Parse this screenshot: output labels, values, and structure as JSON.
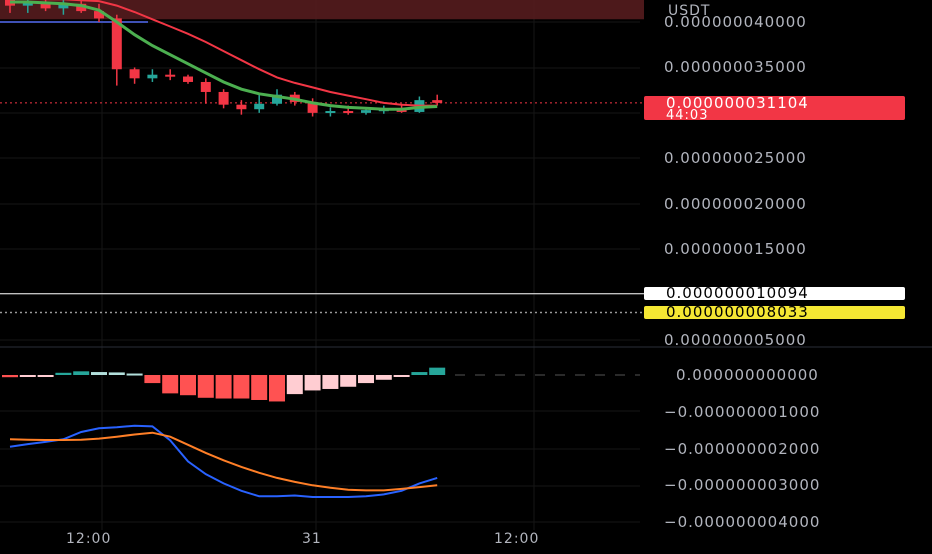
{
  "currency_label": "USDT",
  "price_axis": {
    "labels": [
      "0.000000040000",
      "0.000000035000",
      "0.000000025000",
      "0.000000020000",
      "0.000000015000",
      "0.000000005000"
    ],
    "values": [
      40,
      35,
      25,
      20,
      15,
      5
    ],
    "unit_scale": "1e-9"
  },
  "current_price_badge": {
    "value": "0.000000031104",
    "countdown": "44:03",
    "color": "#f23645"
  },
  "white_line_badge": {
    "value": "0.000000010094"
  },
  "yellow_line_badge": {
    "value": "0.000000008033"
  },
  "macd_axis": {
    "labels": [
      "0.000000000000",
      "−0.000000001000",
      "−0.000000002000",
      "−0.000000003000",
      "−0.000000004000"
    ],
    "values": [
      0,
      -1,
      -2,
      -3,
      -4
    ]
  },
  "time_axis": {
    "labels": [
      "12:00",
      "31",
      "12:00"
    ]
  },
  "colors": {
    "up": "#26a69a",
    "down": "#f23645",
    "ma_fast": "#4caf50",
    "ma_slow": "#f23645",
    "macd": "#2962ff",
    "signal": "#ff7f27",
    "resistance_zone": "#5b1d20",
    "blue_line": "#3f51b5"
  },
  "chart_data": {
    "type": "candlestick",
    "candles": [
      {
        "o": 42.5,
        "h": 43.0,
        "l": 41.0,
        "c": 41.8
      },
      {
        "o": 41.8,
        "h": 42.6,
        "l": 41.0,
        "c": 42.2
      },
      {
        "o": 42.2,
        "h": 42.8,
        "l": 41.2,
        "c": 41.5
      },
      {
        "o": 41.5,
        "h": 42.6,
        "l": 40.8,
        "c": 42.0
      },
      {
        "o": 42.0,
        "h": 42.5,
        "l": 41.0,
        "c": 41.2
      },
      {
        "o": 41.2,
        "h": 42.0,
        "l": 40.0,
        "c": 40.4
      },
      {
        "o": 40.4,
        "h": 40.8,
        "l": 33.0,
        "c": 34.8
      },
      {
        "o": 34.8,
        "h": 35.0,
        "l": 33.2,
        "c": 33.8
      },
      {
        "o": 33.8,
        "h": 34.8,
        "l": 33.4,
        "c": 34.2
      },
      {
        "o": 34.2,
        "h": 34.8,
        "l": 33.6,
        "c": 34.0
      },
      {
        "o": 34.0,
        "h": 34.2,
        "l": 33.2,
        "c": 33.4
      },
      {
        "o": 33.4,
        "h": 33.8,
        "l": 31.0,
        "c": 32.3
      },
      {
        "o": 32.3,
        "h": 32.6,
        "l": 30.5,
        "c": 30.9
      },
      {
        "o": 30.9,
        "h": 31.4,
        "l": 29.8,
        "c": 30.4
      },
      {
        "o": 30.4,
        "h": 32.0,
        "l": 30.0,
        "c": 31.0
      },
      {
        "o": 31.0,
        "h": 32.6,
        "l": 30.8,
        "c": 32.0
      },
      {
        "o": 32.0,
        "h": 32.3,
        "l": 30.8,
        "c": 31.2
      },
      {
        "o": 31.2,
        "h": 31.6,
        "l": 29.6,
        "c": 30.0
      },
      {
        "o": 30.0,
        "h": 30.6,
        "l": 29.6,
        "c": 30.2
      },
      {
        "o": 30.2,
        "h": 30.8,
        "l": 29.8,
        "c": 30.0
      },
      {
        "o": 30.0,
        "h": 30.6,
        "l": 29.8,
        "c": 30.3
      },
      {
        "o": 30.3,
        "h": 30.8,
        "l": 29.9,
        "c": 30.4
      },
      {
        "o": 30.4,
        "h": 31.0,
        "l": 30.0,
        "c": 30.1
      },
      {
        "o": 30.1,
        "h": 31.8,
        "l": 30.0,
        "c": 31.4
      },
      {
        "o": 31.4,
        "h": 32.0,
        "l": 30.8,
        "c": 31.1
      }
    ],
    "ma_fast": [
      42.2,
      42.2,
      42.1,
      42.0,
      41.8,
      41.3,
      40.0,
      38.6,
      37.4,
      36.4,
      35.4,
      34.4,
      33.4,
      32.6,
      32.1,
      31.8,
      31.5,
      31.1,
      30.8,
      30.6,
      30.5,
      30.4,
      30.4,
      30.6,
      30.7
    ],
    "ma_slow": [
      42.6,
      42.6,
      42.5,
      42.5,
      42.4,
      42.3,
      41.8,
      41.1,
      40.3,
      39.5,
      38.7,
      37.8,
      36.8,
      35.8,
      34.8,
      33.9,
      33.3,
      32.8,
      32.3,
      31.9,
      31.5,
      31.1,
      30.9,
      30.8,
      30.8
    ],
    "macd_hist": [
      -0.06,
      -0.04,
      -0.02,
      0.06,
      0.1,
      0.08,
      0.07,
      0.04,
      -0.22,
      -0.5,
      -0.55,
      -0.62,
      -0.64,
      -0.64,
      -0.68,
      -0.72,
      -0.52,
      -0.42,
      -0.38,
      -0.32,
      -0.22,
      -0.13,
      -0.04,
      0.08,
      0.2
    ],
    "macd_line": [
      -1.95,
      -1.88,
      -1.82,
      -1.75,
      -1.55,
      -1.45,
      -1.42,
      -1.38,
      -1.4,
      -1.78,
      -2.35,
      -2.7,
      -2.95,
      -3.15,
      -3.3,
      -3.3,
      -3.28,
      -3.32,
      -3.32,
      -3.32,
      -3.3,
      -3.25,
      -3.15,
      -2.95,
      -2.8
    ],
    "signal_line": [
      -1.75,
      -1.76,
      -1.77,
      -1.77,
      -1.76,
      -1.73,
      -1.68,
      -1.62,
      -1.57,
      -1.68,
      -1.9,
      -2.12,
      -2.32,
      -2.5,
      -2.66,
      -2.8,
      -2.91,
      -3.0,
      -3.07,
      -3.12,
      -3.14,
      -3.14,
      -3.1,
      -3.05,
      -3.0
    ],
    "resistance_zone": [
      40.3,
      44.0
    ],
    "horizontal_levels": [
      10.094,
      8.033
    ],
    "blue_level": 40.0
  }
}
